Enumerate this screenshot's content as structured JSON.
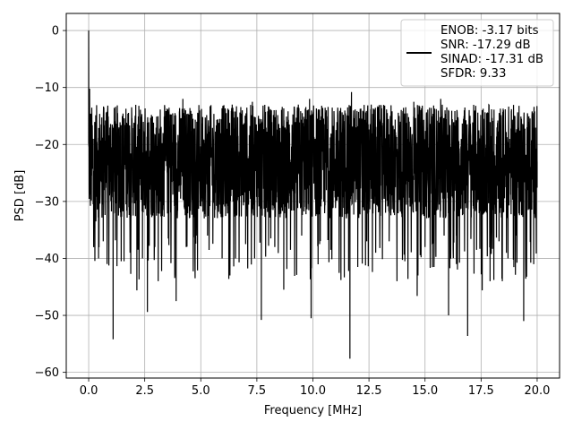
{
  "chart_data": {
    "type": "line",
    "title": "",
    "xlabel": "Frequency [MHz]",
    "ylabel": "PSD [dB]",
    "xlim": [
      -1.0,
      21.0
    ],
    "ylim": [
      -61.0,
      3.0
    ],
    "xticks": [
      0.0,
      2.5,
      5.0,
      7.5,
      10.0,
      12.5,
      15.0,
      17.5,
      20.0
    ],
    "xtick_labels": [
      "0.0",
      "2.5",
      "5.0",
      "7.5",
      "10.0",
      "12.5",
      "15.0",
      "17.5",
      "20.0"
    ],
    "yticks": [
      0,
      -10,
      -20,
      -30,
      -40,
      -50,
      -60
    ],
    "ytick_labels": [
      "0",
      "−10",
      "−20",
      "−30",
      "−40",
      "−50",
      "−60"
    ],
    "grid": true,
    "legend_position": "upper-right",
    "legend_lines": [
      "ENOB: -3.17 bits",
      "SNR: -17.29 dB",
      "SINAD: -17.31 dB",
      "SFDR: 9.33"
    ],
    "colors": {
      "line": "#000000",
      "grid": "#b0b0b0",
      "axes": "#000000"
    },
    "series": [
      {
        "noise_floor_db": -23,
        "upper_envelope_db": -13,
        "lower_envelope_db": -33,
        "points": [
          [
            0.0,
            0.0
          ],
          [
            0.02,
            -27.5
          ],
          [
            0.04,
            -10.2
          ],
          [
            0.06,
            -21.0
          ],
          [
            0.08,
            -14.6
          ],
          [
            0.1,
            -28.0
          ],
          [
            0.13,
            -17.5
          ],
          [
            0.16,
            -24.0
          ],
          [
            0.2,
            -30.5
          ],
          [
            0.26,
            -19.0
          ],
          [
            0.32,
            -33.5
          ],
          [
            0.4,
            -21.0
          ],
          [
            0.44,
            -40.0
          ],
          [
            0.55,
            -22.0
          ],
          [
            0.65,
            -37.0
          ],
          [
            0.75,
            -15.8
          ],
          [
            0.82,
            -41.0
          ],
          [
            0.95,
            -24.0
          ],
          [
            1.05,
            -16.5
          ],
          [
            1.09,
            -54.2
          ],
          [
            1.2,
            -28.0
          ],
          [
            1.35,
            -17.0
          ],
          [
            1.45,
            -40.5
          ],
          [
            1.6,
            -23.0
          ],
          [
            1.75,
            -14.6
          ],
          [
            1.88,
            -37.0
          ],
          [
            2.05,
            -25.0
          ],
          [
            2.15,
            -45.6
          ],
          [
            2.3,
            -17.5
          ],
          [
            2.4,
            -40.0
          ],
          [
            2.55,
            -22.0
          ],
          [
            2.62,
            -49.4
          ],
          [
            2.8,
            -14.8
          ],
          [
            2.95,
            -38.0
          ],
          [
            3.05,
            -20.5
          ],
          [
            3.1,
            -44.0
          ],
          [
            3.3,
            -24.0
          ],
          [
            3.4,
            -15.0
          ],
          [
            3.55,
            -36.5
          ],
          [
            3.7,
            -22.0
          ],
          [
            3.85,
            -14.5
          ],
          [
            3.9,
            -47.5
          ],
          [
            4.05,
            -20.0
          ],
          [
            4.2,
            -12.0
          ],
          [
            4.35,
            -38.0
          ],
          [
            4.5,
            -22.5
          ],
          [
            4.65,
            -15.5
          ],
          [
            4.8,
            -36.0
          ],
          [
            4.95,
            -24.0
          ],
          [
            5.1,
            -19.0
          ],
          [
            5.3,
            -36.0
          ],
          [
            5.45,
            -15.0
          ],
          [
            5.6,
            -30.0
          ],
          [
            5.8,
            -17.0
          ],
          [
            5.95,
            -40.0
          ],
          [
            6.1,
            -24.0
          ],
          [
            6.25,
            -43.6
          ],
          [
            6.4,
            -13.0
          ],
          [
            6.55,
            -40.0
          ],
          [
            6.7,
            -26.0
          ],
          [
            6.85,
            -14.0
          ],
          [
            7.0,
            -37.5
          ],
          [
            7.15,
            -22.0
          ],
          [
            7.3,
            -12.5
          ],
          [
            7.4,
            -40.0
          ],
          [
            7.55,
            -24.0
          ],
          [
            7.7,
            -50.8
          ],
          [
            7.85,
            -19.0
          ],
          [
            8.0,
            -30.5
          ],
          [
            8.15,
            -14.0
          ],
          [
            8.3,
            -38.0
          ],
          [
            8.5,
            -21.0
          ],
          [
            8.7,
            -45.5
          ],
          [
            8.85,
            -16.0
          ],
          [
            9.0,
            -38.5
          ],
          [
            9.15,
            -24.0
          ],
          [
            9.35,
            -13.0
          ],
          [
            9.5,
            -36.0
          ],
          [
            9.7,
            -26.0
          ],
          [
            9.85,
            -12.0
          ],
          [
            9.92,
            -50.5
          ],
          [
            10.1,
            -19.0
          ],
          [
            10.3,
            -37.5
          ],
          [
            10.45,
            -24.5
          ],
          [
            10.6,
            -14.0
          ],
          [
            10.8,
            -38.5
          ],
          [
            10.95,
            -22.0
          ],
          [
            11.1,
            -15.0
          ],
          [
            11.25,
            -43.8
          ],
          [
            11.4,
            -21.0
          ],
          [
            11.55,
            -13.5
          ],
          [
            11.65,
            -57.6
          ],
          [
            11.72,
            -10.8
          ],
          [
            11.85,
            -26.0
          ],
          [
            12.0,
            -41.5
          ],
          [
            12.2,
            -17.0
          ],
          [
            12.4,
            -37.0
          ],
          [
            12.6,
            -13.0
          ],
          [
            12.8,
            -39.0
          ],
          [
            13.0,
            -24.0
          ],
          [
            13.2,
            -14.5
          ],
          [
            13.4,
            -37.0
          ],
          [
            13.55,
            -22.0
          ],
          [
            13.75,
            -44.0
          ],
          [
            13.9,
            -16.0
          ],
          [
            14.1,
            -40.5
          ],
          [
            14.3,
            -24.0
          ],
          [
            14.5,
            -12.5
          ],
          [
            14.65,
            -46.6
          ],
          [
            14.85,
            -21.0
          ],
          [
            15.0,
            -38.0
          ],
          [
            15.2,
            -14.5
          ],
          [
            15.4,
            -41.5
          ],
          [
            15.55,
            -26.0
          ],
          [
            15.7,
            -12.0
          ],
          [
            15.85,
            -36.0
          ],
          [
            16.05,
            -50.0
          ],
          [
            16.2,
            -17.0
          ],
          [
            16.4,
            -41.0
          ],
          [
            16.6,
            -24.0
          ],
          [
            16.75,
            -14.0
          ],
          [
            16.9,
            -53.6
          ],
          [
            17.1,
            -20.0
          ],
          [
            17.3,
            -38.5
          ],
          [
            17.55,
            -45.6
          ],
          [
            17.75,
            -14.5
          ],
          [
            17.9,
            -44.0
          ],
          [
            18.1,
            -24.0
          ],
          [
            18.3,
            -37.0
          ],
          [
            18.5,
            -14.0
          ],
          [
            18.7,
            -40.0
          ],
          [
            18.85,
            -21.0
          ],
          [
            19.05,
            -36.0
          ],
          [
            19.3,
            -15.5
          ],
          [
            19.4,
            -51.0
          ],
          [
            19.55,
            -17.0
          ],
          [
            19.7,
            -32.0
          ],
          [
            19.8,
            -14.5
          ],
          [
            19.9,
            -31.0
          ],
          [
            20.0,
            -23.0
          ]
        ]
      }
    ]
  }
}
